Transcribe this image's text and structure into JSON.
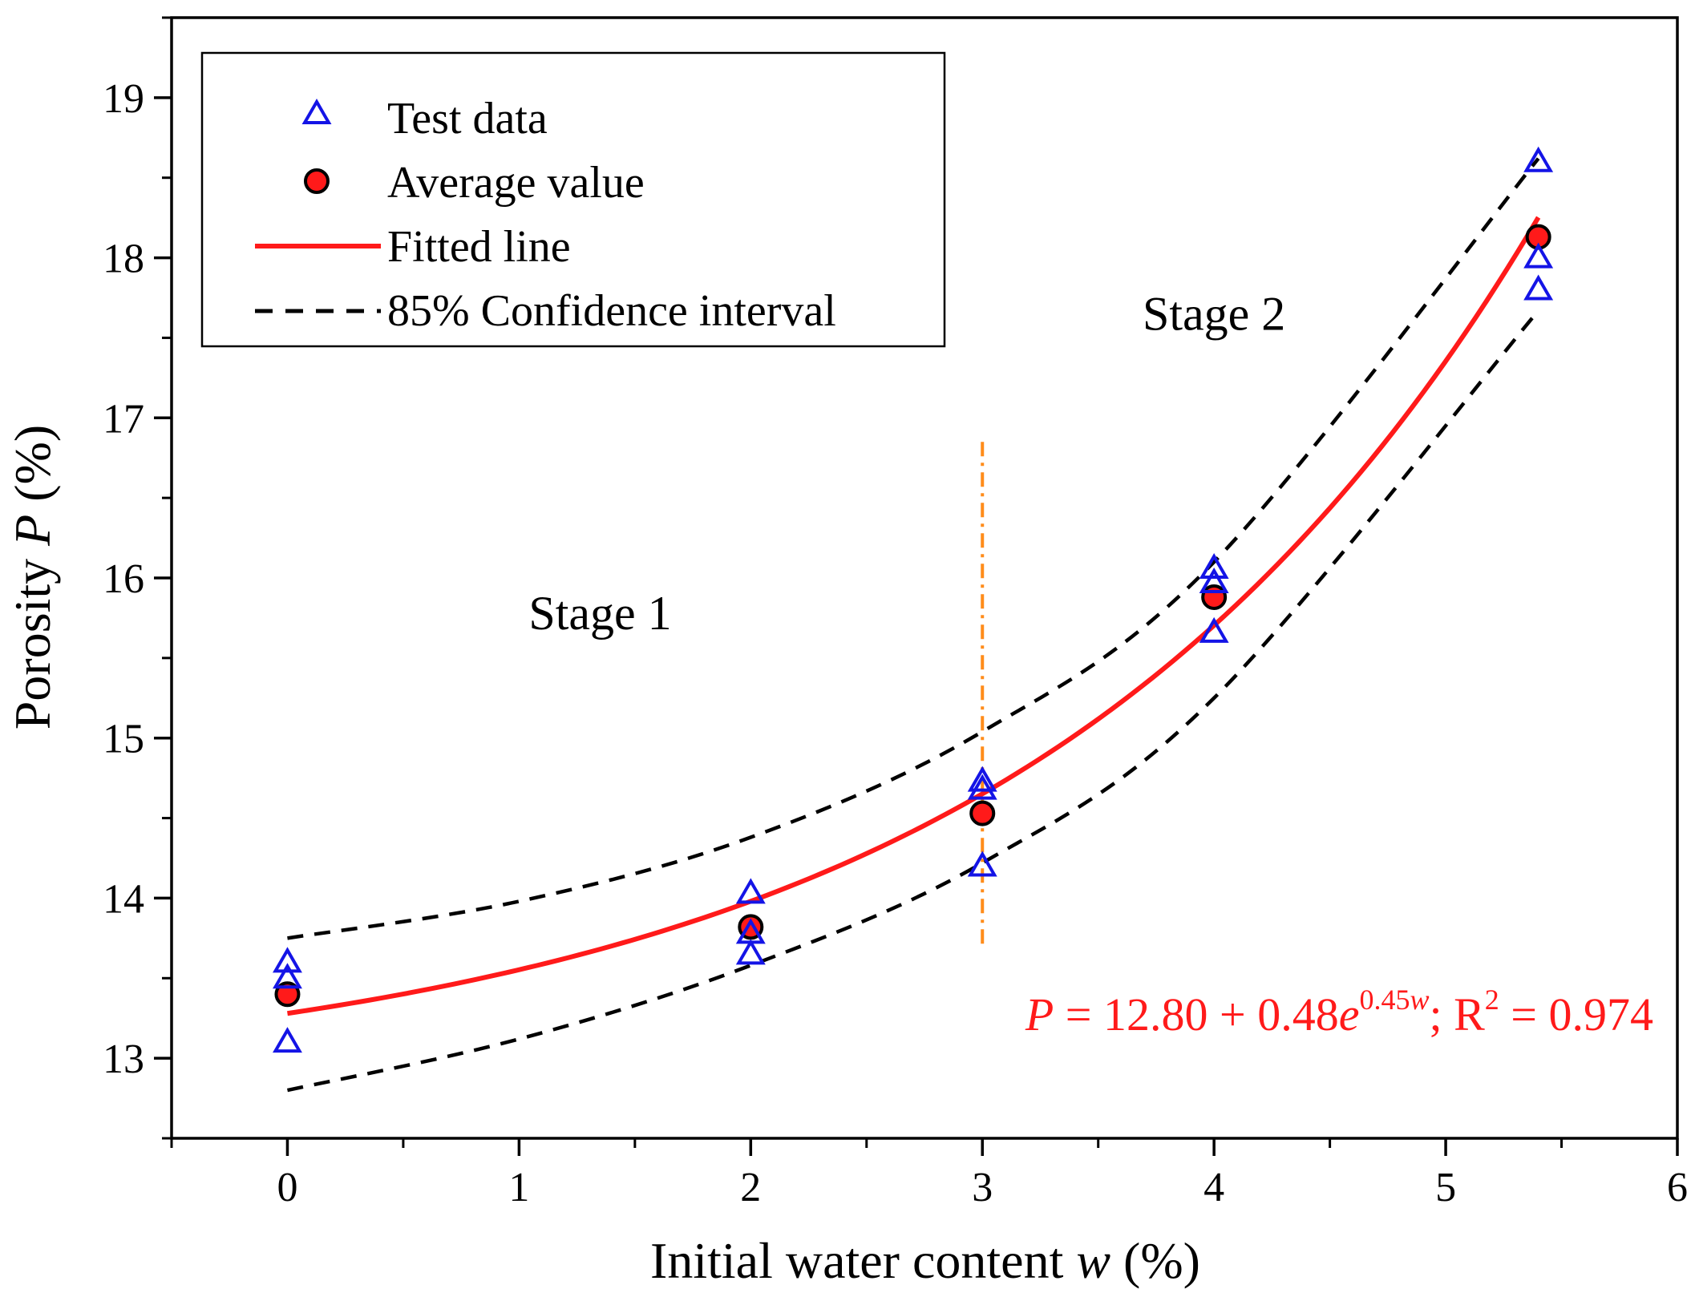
{
  "chart_data": {
    "type": "scatter",
    "xlabel": {
      "prefix": "Initial water content ",
      "var": "w",
      "suffix": " (%)"
    },
    "ylabel": {
      "prefix": "Porosity ",
      "var": "P",
      "suffix": " (%)"
    },
    "xlim": [
      -0.5,
      6
    ],
    "ylim": [
      12.5,
      19.5
    ],
    "x_ticks": [
      {
        "value": 0,
        "label": "0"
      },
      {
        "value": 1,
        "label": "1"
      },
      {
        "value": 2,
        "label": "2"
      },
      {
        "value": 3,
        "label": "3"
      },
      {
        "value": 4,
        "label": "4"
      },
      {
        "value": 5,
        "label": "5"
      },
      {
        "value": 6,
        "label": "6"
      }
    ],
    "x_minor_ticks": [
      -0.5,
      0.5,
      1.5,
      2.5,
      3.5,
      4.5,
      5.5
    ],
    "y_ticks": [
      {
        "value": 13,
        "label": "13"
      },
      {
        "value": 14,
        "label": "14"
      },
      {
        "value": 15,
        "label": "15"
      },
      {
        "value": 16,
        "label": "16"
      },
      {
        "value": 17,
        "label": "17"
      },
      {
        "value": 18,
        "label": "18"
      },
      {
        "value": 19,
        "label": "19"
      }
    ],
    "y_minor_ticks": [
      12.5,
      13.5,
      14.5,
      15.5,
      16.5,
      17.5,
      18.5,
      19.5
    ],
    "series": [
      {
        "name": "Test data",
        "marker": "triangle-open",
        "color": "#1414e6",
        "points": [
          [
            0,
            13.6
          ],
          [
            0,
            13.5
          ],
          [
            0,
            13.1
          ],
          [
            2,
            14.03
          ],
          [
            2,
            13.78
          ],
          [
            2,
            13.65
          ],
          [
            3,
            14.73
          ],
          [
            3,
            14.68
          ],
          [
            3,
            14.2
          ],
          [
            4,
            16.06
          ],
          [
            4,
            15.97
          ],
          [
            4,
            15.66
          ],
          [
            5.4,
            18.6
          ],
          [
            5.4,
            18.0
          ],
          [
            5.4,
            17.8
          ]
        ]
      },
      {
        "name": "Average value",
        "marker": "circle-filled",
        "color": "#ff1a1a",
        "edge_color": "#000000",
        "points": [
          [
            0,
            13.4
          ],
          [
            2,
            13.82
          ],
          [
            3,
            14.53
          ],
          [
            4,
            15.88
          ],
          [
            5.4,
            18.13
          ]
        ]
      },
      {
        "name": "Fitted line",
        "style": "solid",
        "color": "#ff1a1a",
        "model": {
          "a": 12.8,
          "b": 0.48,
          "c": 0.45
        },
        "x_range": [
          0,
          5.4
        ]
      },
      {
        "name": "85% Confidence interval",
        "style": "dashed",
        "color": "#000000",
        "upper": [
          [
            0,
            13.75
          ],
          [
            1,
            13.98
          ],
          [
            2,
            14.38
          ],
          [
            3,
            15.04
          ],
          [
            4,
            16.1
          ],
          [
            5.4,
            18.62
          ]
        ],
        "lower": [
          [
            0,
            12.8
          ],
          [
            1,
            13.12
          ],
          [
            2,
            13.58
          ],
          [
            3,
            14.22
          ],
          [
            4,
            15.25
          ],
          [
            5.4,
            17.67
          ]
        ]
      }
    ],
    "vertical_line": {
      "x": 3,
      "y_from": 13.7,
      "y_to": 16.85,
      "style": "dash-dot",
      "color": "#ff8c1a"
    },
    "annotations": [
      {
        "id": "stage1",
        "text": "Stage 1",
        "x": 1.35,
        "y": 15.68
      },
      {
        "id": "stage2",
        "text": "Stage 2",
        "x": 4.0,
        "y": 17.55
      }
    ],
    "equation": {
      "color": "#ff1a1a",
      "p_var": "P",
      "text_main": " = 12.80 + 0.48",
      "e_var": "e",
      "exponent_num": "0.45",
      "exponent_var": "w",
      "text_r": "; R",
      "r_sup": "2",
      "text_end": " = 0.974"
    },
    "legend": {
      "position": "top-left",
      "entries": [
        "Test data",
        "Average value",
        "Fitted line",
        "85% Confidence interval"
      ]
    }
  }
}
